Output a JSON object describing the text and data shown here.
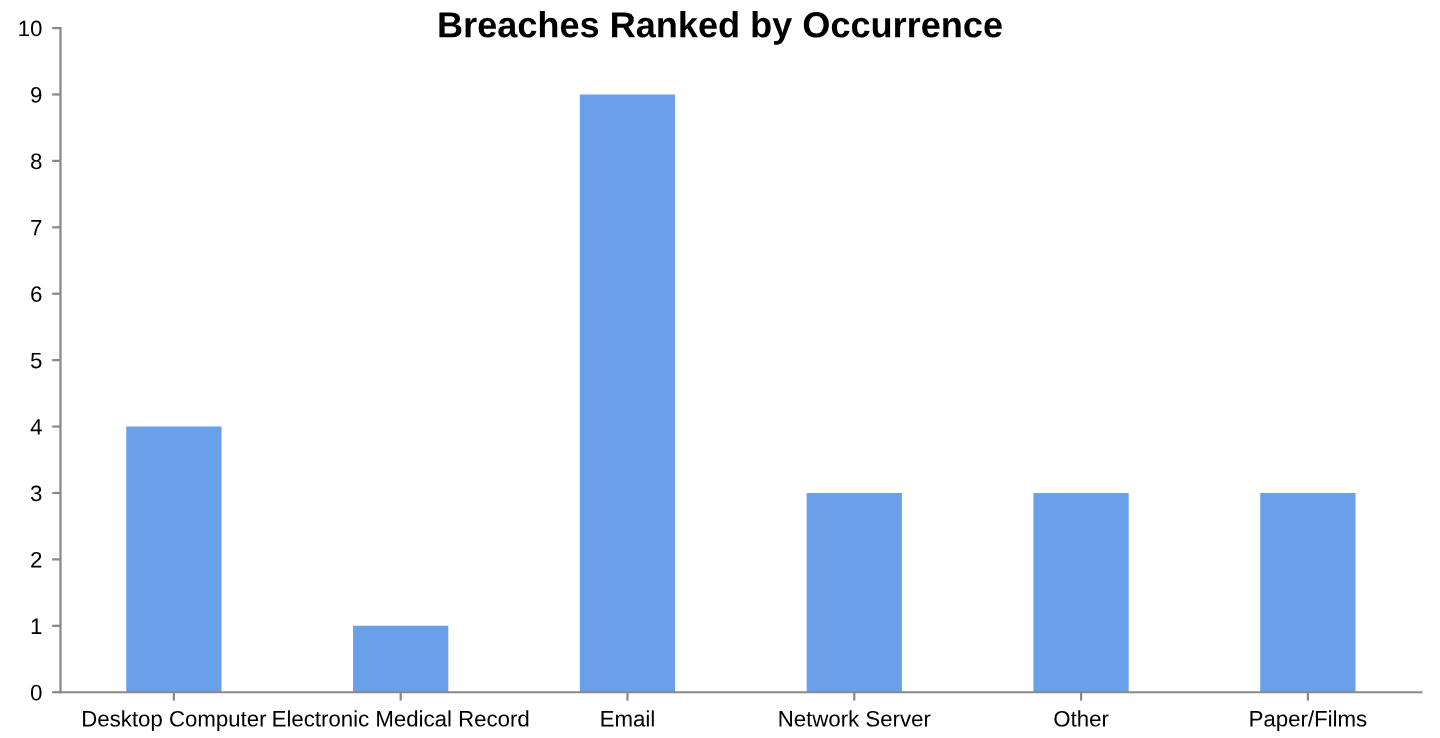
{
  "chart_data": {
    "type": "bar",
    "title": "Breaches Ranked by Occurrence",
    "categories": [
      "Desktop Computer",
      "Electronic Medical Record",
      "Email",
      "Network Server",
      "Other",
      "Paper/Films"
    ],
    "values": [
      4,
      1,
      9,
      3,
      3,
      3
    ],
    "color": "#6a9fea",
    "ylim": [
      0,
      10
    ],
    "yticks": [
      0,
      1,
      2,
      3,
      4,
      5,
      6,
      7,
      8,
      9,
      10
    ],
    "grid": false,
    "legend": false
  }
}
